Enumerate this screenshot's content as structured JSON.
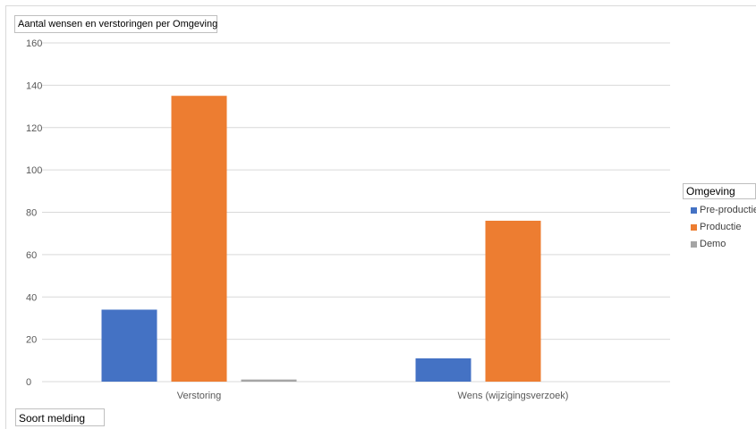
{
  "chart_title_button": "Aantal wensen en verstoringen per Omgeving",
  "xaxis_field_button": "Soort melding",
  "legend": {
    "title": "Omgeving",
    "items": [
      {
        "label": "Pre-productie",
        "color": "#4472c4"
      },
      {
        "label": "Productie",
        "color": "#ed7d31"
      },
      {
        "label": "Demo",
        "color": "#a5a5a5"
      }
    ]
  },
  "chart_data": {
    "type": "bar",
    "categories": [
      "Verstoring",
      "Wens (wijzigingsverzoek)"
    ],
    "series": [
      {
        "name": "Pre-productie",
        "values": [
          34,
          11
        ],
        "color": "#4472c4"
      },
      {
        "name": "Productie",
        "values": [
          135,
          76
        ],
        "color": "#ed7d31"
      },
      {
        "name": "Demo",
        "values": [
          1,
          0
        ],
        "color": "#a5a5a5"
      }
    ],
    "yticks": [
      "0",
      "20",
      "40",
      "60",
      "80",
      "100",
      "120",
      "140",
      "160"
    ],
    "ylim": [
      0,
      160
    ],
    "grid": true,
    "legend_position": "right"
  }
}
